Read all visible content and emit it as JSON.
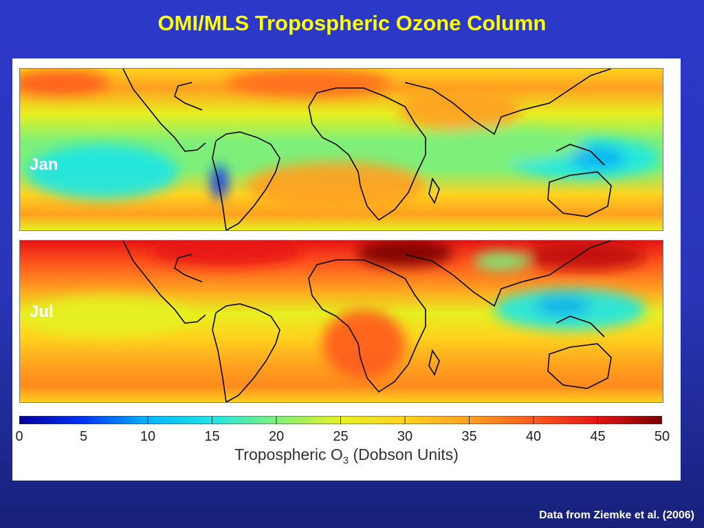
{
  "title": "OMI/MLS Tropospheric Ozone Column",
  "panels": [
    {
      "label": "Jan"
    },
    {
      "label": "Jul"
    }
  ],
  "colorbar": {
    "min": 0,
    "max": 50,
    "ticks": [
      "0",
      "5",
      "10",
      "15",
      "20",
      "25",
      "30",
      "35",
      "40",
      "45",
      "50"
    ],
    "label_main": "Tropospheric O",
    "label_sub": "3",
    "label_units": "(Dobson Units)",
    "colors": [
      "#00009a",
      "#0033ff",
      "#00b4ff",
      "#1fe6e6",
      "#7ef07a",
      "#e6f020",
      "#ffd21e",
      "#ffa020",
      "#ff5a1e",
      "#e61414",
      "#7a0000"
    ]
  },
  "credit": "Data from Ziemke et al. (2006)"
}
